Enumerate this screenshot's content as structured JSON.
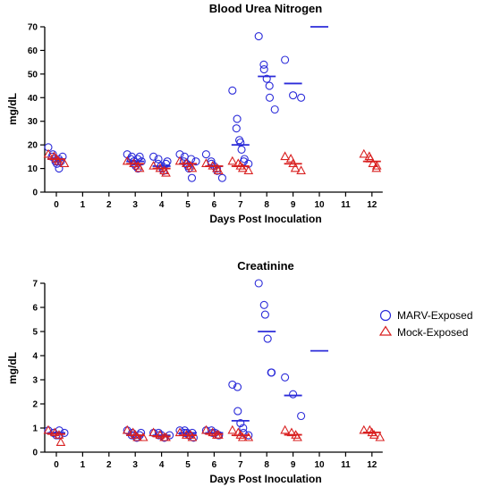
{
  "legend": [
    {
      "name": "MARV-Exposed",
      "color": "#2b2bd9",
      "marker": "circle"
    },
    {
      "name": "Mock-Exposed",
      "color": "#d92020",
      "marker": "triangle"
    }
  ],
  "chart_data": [
    {
      "type": "scatter",
      "title": "Blood  Urea  Nitrogen",
      "xlabel": "Days Post Inoculation",
      "ylabel": "mg/dL",
      "xticks": [
        0,
        1,
        2,
        3,
        4,
        5,
        6,
        7,
        8,
        9,
        10,
        11,
        12
      ],
      "yticks": [
        0,
        10,
        20,
        30,
        40,
        50,
        60,
        70
      ],
      "ylim": [
        0,
        70
      ],
      "series": [
        {
          "name": "MARV-Exposed",
          "color": "#2b2bd9",
          "points": [
            {
              "day": 0,
              "values": [
                19,
                16,
                15,
                14,
                13,
                12,
                10,
                14,
                15,
                13
              ]
            },
            {
              "day": 3,
              "values": [
                16,
                15,
                14,
                13,
                12,
                11,
                10,
                14,
                13,
                15
              ]
            },
            {
              "day": 4,
              "values": [
                15,
                14,
                12,
                11,
                10,
                9,
                13,
                12
              ]
            },
            {
              "day": 5,
              "values": [
                16,
                15,
                13,
                12,
                11,
                10,
                6,
                14,
                13
              ]
            },
            {
              "day": 6,
              "values": [
                16,
                13,
                12,
                11,
                10,
                9,
                6
              ]
            },
            {
              "day": 7,
              "values": [
                43,
                31,
                27,
                22,
                21,
                18,
                14,
                13,
                12
              ]
            },
            {
              "day": 8,
              "values": [
                66,
                54,
                52,
                48,
                45,
                40,
                35
              ]
            },
            {
              "day": 9,
              "values": [
                56,
                41,
                40
              ]
            },
            {
              "day": 10,
              "values": []
            }
          ],
          "means": [
            {
              "day": 0,
              "value": 14
            },
            {
              "day": 3,
              "value": 13
            },
            {
              "day": 4,
              "value": 11
            },
            {
              "day": 5,
              "value": 12
            },
            {
              "day": 6,
              "value": 11
            },
            {
              "day": 7,
              "value": 20
            },
            {
              "day": 8,
              "value": 49
            },
            {
              "day": 9,
              "value": 46
            },
            {
              "day": 10,
              "value": 70
            }
          ]
        },
        {
          "name": "Mock-Exposed",
          "color": "#d92020",
          "points": [
            {
              "day": 0,
              "values": [
                16,
                15,
                14,
                13,
                12
              ]
            },
            {
              "day": 3,
              "values": [
                13,
                12,
                11,
                10
              ]
            },
            {
              "day": 4,
              "values": [
                11,
                10,
                9,
                8
              ]
            },
            {
              "day": 5,
              "values": [
                13,
                12,
                11,
                10
              ]
            },
            {
              "day": 6,
              "values": [
                12,
                11,
                10,
                9
              ]
            },
            {
              "day": 7,
              "values": [
                13,
                12,
                11,
                10,
                9
              ]
            },
            {
              "day": 9,
              "values": [
                15,
                14,
                12,
                10,
                9
              ]
            },
            {
              "day": 12,
              "values": [
                16,
                15,
                14,
                12,
                11,
                10
              ]
            }
          ],
          "means": [
            {
              "day": 0,
              "value": 14
            },
            {
              "day": 3,
              "value": 12
            },
            {
              "day": 4,
              "value": 10
            },
            {
              "day": 5,
              "value": 12
            },
            {
              "day": 6,
              "value": 11
            },
            {
              "day": 7,
              "value": 11
            },
            {
              "day": 9,
              "value": 12
            },
            {
              "day": 12,
              "value": 13
            }
          ]
        }
      ]
    },
    {
      "type": "scatter",
      "title": "Creatinine",
      "xlabel": "Days Post Inoculation",
      "ylabel": "mg/dL",
      "xticks": [
        0,
        1,
        2,
        3,
        4,
        5,
        6,
        7,
        8,
        9,
        10,
        11,
        12
      ],
      "yticks": [
        0,
        1,
        2,
        3,
        4,
        5,
        6,
        7
      ],
      "ylim": [
        0,
        7
      ],
      "series": [
        {
          "name": "MARV-Exposed",
          "color": "#2b2bd9",
          "points": [
            {
              "day": 0,
              "values": [
                0.9,
                0.8,
                0.8,
                0.7,
                0.7,
                0.9,
                0.8
              ]
            },
            {
              "day": 3,
              "values": [
                0.9,
                0.8,
                0.7,
                0.7,
                0.6,
                0.6,
                0.8,
                0.7
              ]
            },
            {
              "day": 4,
              "values": [
                0.8,
                0.8,
                0.7,
                0.7,
                0.6,
                0.6,
                0.7
              ]
            },
            {
              "day": 5,
              "values": [
                0.9,
                0.9,
                0.8,
                0.8,
                0.7,
                0.7,
                0.6,
                0.8
              ]
            },
            {
              "day": 6,
              "values": [
                0.9,
                0.9,
                0.8,
                0.8,
                0.7,
                0.7
              ]
            },
            {
              "day": 7,
              "values": [
                2.8,
                2.7,
                1.7,
                1.2,
                1.0,
                0.8,
                0.7
              ]
            },
            {
              "day": 8,
              "values": [
                7.0,
                6.1,
                5.7,
                4.7,
                3.3,
                3.3
              ]
            },
            {
              "day": 9,
              "values": [
                3.1,
                2.4,
                1.5
              ]
            },
            {
              "day": 10,
              "values": []
            }
          ],
          "means": [
            {
              "day": 0,
              "value": 0.8
            },
            {
              "day": 3,
              "value": 0.7
            },
            {
              "day": 4,
              "value": 0.7
            },
            {
              "day": 5,
              "value": 0.8
            },
            {
              "day": 6,
              "value": 0.8
            },
            {
              "day": 7,
              "value": 1.3
            },
            {
              "day": 8,
              "value": 5.0
            },
            {
              "day": 9,
              "value": 2.35
            },
            {
              "day": 10,
              "value": 4.2
            }
          ]
        },
        {
          "name": "Mock-Exposed",
          "color": "#d92020",
          "points": [
            {
              "day": 0,
              "values": [
                0.9,
                0.8,
                0.7,
                0.4
              ]
            },
            {
              "day": 3,
              "values": [
                0.9,
                0.8,
                0.7,
                0.6,
                0.6
              ]
            },
            {
              "day": 4,
              "values": [
                0.8,
                0.7,
                0.6,
                0.6
              ]
            },
            {
              "day": 5,
              "values": [
                0.8,
                0.7,
                0.7,
                0.6
              ]
            },
            {
              "day": 6,
              "values": [
                0.9,
                0.8,
                0.7,
                0.7
              ]
            },
            {
              "day": 7,
              "values": [
                0.9,
                0.8,
                0.7,
                0.6,
                0.6
              ]
            },
            {
              "day": 9,
              "values": [
                0.9,
                0.8,
                0.7,
                0.6
              ]
            },
            {
              "day": 12,
              "values": [
                0.9,
                0.9,
                0.8,
                0.7,
                0.6
              ]
            }
          ],
          "means": [
            {
              "day": 0,
              "value": 0.75
            },
            {
              "day": 3,
              "value": 0.7
            },
            {
              "day": 4,
              "value": 0.65
            },
            {
              "day": 5,
              "value": 0.7
            },
            {
              "day": 6,
              "value": 0.75
            },
            {
              "day": 7,
              "value": 0.7
            },
            {
              "day": 9,
              "value": 0.72
            },
            {
              "day": 12,
              "value": 0.82
            }
          ]
        }
      ]
    }
  ]
}
